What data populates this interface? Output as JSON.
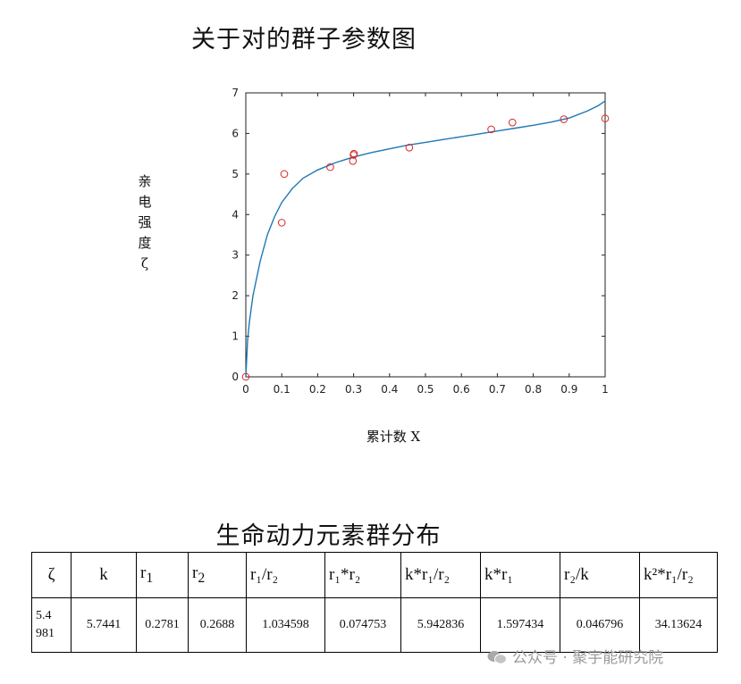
{
  "chart_data": {
    "type": "scatter",
    "title": "关于对的群子参数图",
    "xlabel": "累计数 X",
    "ylabel": "亲\n电\n强\n度\nζ",
    "xlim": [
      0,
      1
    ],
    "ylim": [
      0,
      7
    ],
    "x_ticks": [
      "0",
      "0.1",
      "0.2",
      "0.3",
      "0.4",
      "0.5",
      "0.6",
      "0.7",
      "0.8",
      "0.9",
      "1"
    ],
    "y_ticks": [
      "0",
      "1",
      "2",
      "3",
      "4",
      "5",
      "6",
      "7"
    ],
    "grid": false,
    "series": [
      {
        "kind": "points",
        "marker": "circle-open",
        "color": "#d62728",
        "x": [
          0,
          0.1,
          0.107,
          0.235,
          0.298,
          0.3,
          0.301,
          0.455,
          0.683,
          0.742,
          0.885,
          1.0
        ],
        "y": [
          0,
          3.8,
          5.0,
          5.17,
          5.32,
          5.47,
          5.5,
          5.65,
          6.1,
          6.27,
          6.35,
          6.37
        ]
      },
      {
        "kind": "fit-curve",
        "color": "#1f77b4",
        "x": [
          0,
          0.005,
          0.01,
          0.02,
          0.04,
          0.06,
          0.08,
          0.1,
          0.13,
          0.16,
          0.2,
          0.25,
          0.3,
          0.35,
          0.4,
          0.45,
          0.5,
          0.55,
          0.6,
          0.65,
          0.7,
          0.75,
          0.8,
          0.85,
          0.9,
          0.95,
          0.98,
          1.0
        ],
        "y": [
          0,
          0.9,
          1.35,
          2.0,
          2.85,
          3.5,
          3.95,
          4.3,
          4.65,
          4.9,
          5.1,
          5.28,
          5.42,
          5.53,
          5.62,
          5.71,
          5.78,
          5.85,
          5.92,
          5.99,
          6.06,
          6.13,
          6.2,
          6.28,
          6.38,
          6.55,
          6.68,
          6.8
        ]
      }
    ]
  },
  "table": {
    "title": "生命动力元素群分布",
    "headers": [
      {
        "base": "ζ",
        "sub": ""
      },
      {
        "base": "k",
        "sub": ""
      },
      {
        "base": "r",
        "sub": "1"
      },
      {
        "base": "r",
        "sub": "2"
      },
      {
        "base": "r₁/r₂",
        "sub": ""
      },
      {
        "base": "r₁*r₂",
        "sub": ""
      },
      {
        "base": "k*r₁/r₂",
        "sub": ""
      },
      {
        "base": "k*r₁",
        "sub": ""
      },
      {
        "base": "r₂/k",
        "sub": ""
      },
      {
        "base": "k²*r₁/r₂",
        "sub": ""
      }
    ],
    "values": [
      "5.4 981",
      "5.7441",
      "0.2781",
      "0.2688",
      "1.034598",
      "0.074753",
      "5.942836",
      "1.597434",
      "0.046796",
      "34.13624"
    ]
  },
  "watermark": "公众号 · 聚宇能研究院"
}
